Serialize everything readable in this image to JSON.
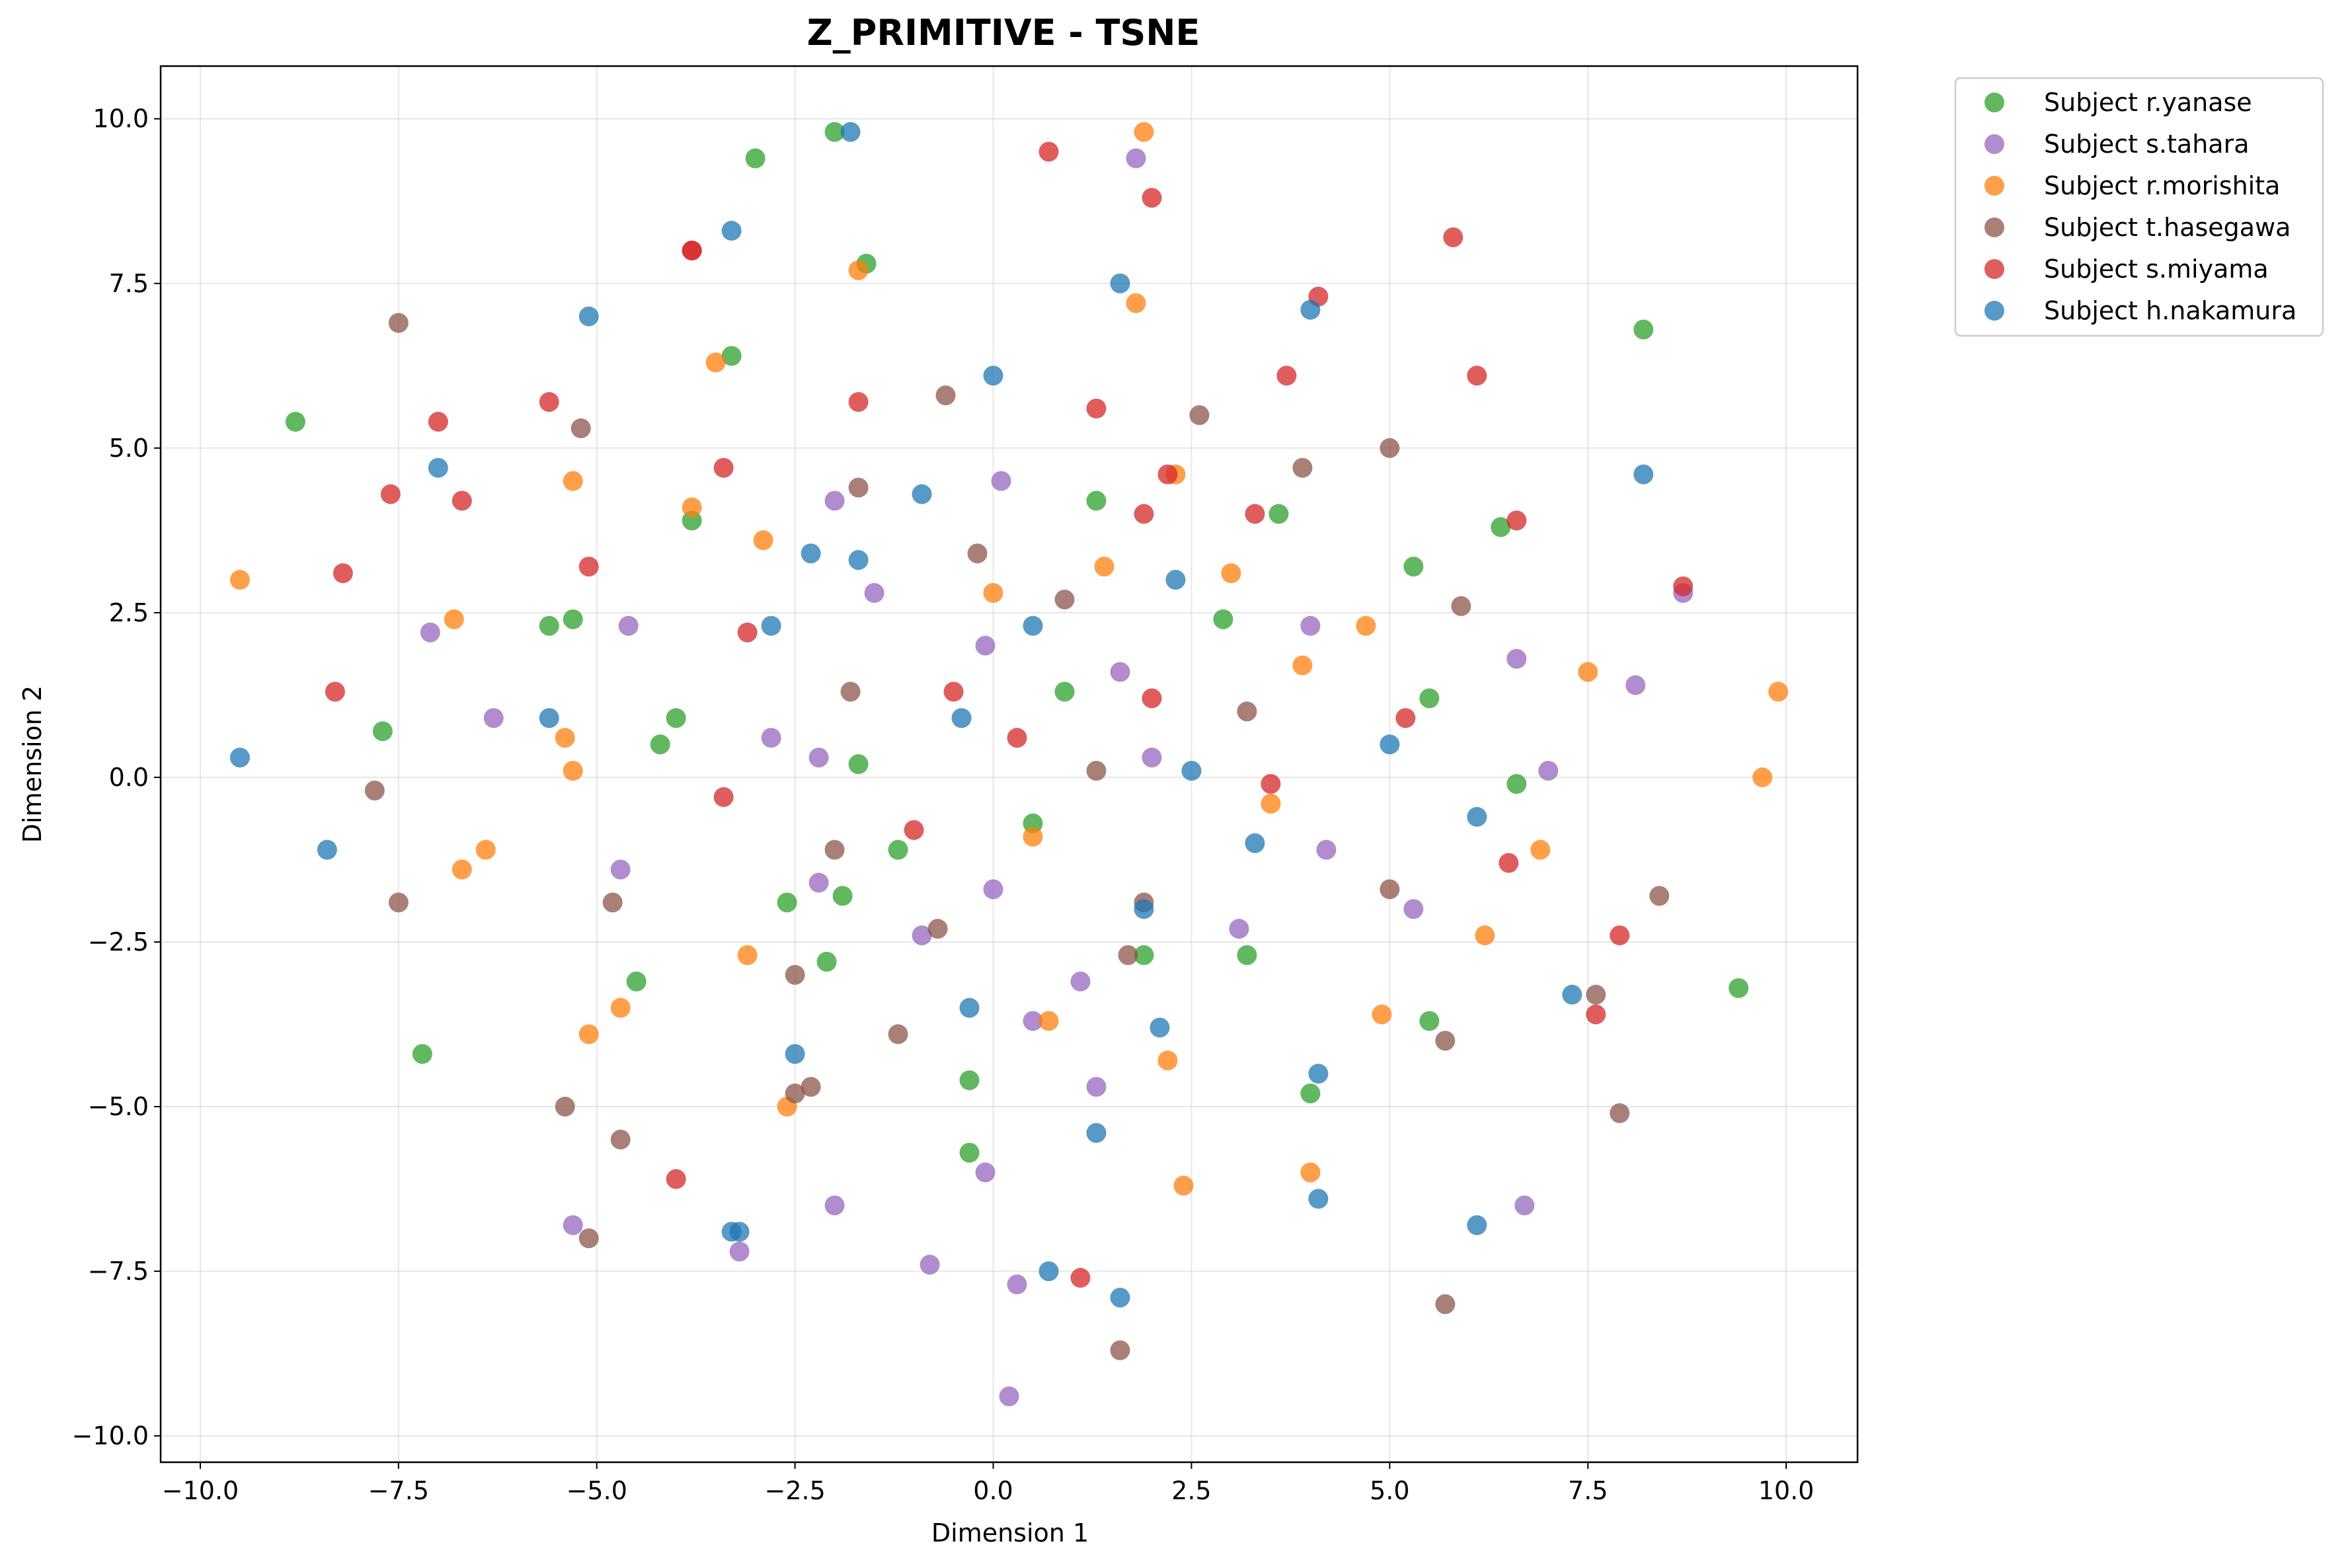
{
  "chart_data": {
    "type": "scatter",
    "title": "Z_PRIMITIVE - TSNE",
    "xlabel": "Dimension 1",
    "ylabel": "Dimension 2",
    "xlim": [
      -10.5,
      10.9
    ],
    "ylim": [
      -10.4,
      10.8
    ],
    "xticks": [
      -10.0,
      -7.5,
      -5.0,
      -2.5,
      0.0,
      2.5,
      5.0,
      7.5,
      10.0
    ],
    "yticks": [
      -10.0,
      -7.5,
      -5.0,
      -2.5,
      0.0,
      2.5,
      5.0,
      7.5,
      10.0
    ],
    "xtick_labels": [
      "−10.0",
      "−7.5",
      "−5.0",
      "−2.5",
      "0.0",
      "2.5",
      "5.0",
      "7.5",
      "10.0"
    ],
    "ytick_labels": [
      "−10.0",
      "−7.5",
      "−5.0",
      "−2.5",
      "0.0",
      "2.5",
      "5.0",
      "7.5",
      "10.0"
    ],
    "grid": true,
    "legend_position": "outside-top-right",
    "series": [
      {
        "name": "Subject r.yanase",
        "color": "#2ca02c",
        "points": [
          [
            -8.8,
            5.4
          ],
          [
            -3.0,
            9.4
          ],
          [
            -2.0,
            9.8
          ],
          [
            -1.6,
            7.8
          ],
          [
            -3.3,
            6.4
          ],
          [
            -3.8,
            3.9
          ],
          [
            -5.6,
            2.3
          ],
          [
            -5.3,
            2.4
          ],
          [
            -7.7,
            0.7
          ],
          [
            -4.0,
            0.9
          ],
          [
            -4.2,
            0.5
          ],
          [
            -1.7,
            0.2
          ],
          [
            -1.2,
            -1.1
          ],
          [
            -2.6,
            -1.9
          ],
          [
            -1.9,
            -1.8
          ],
          [
            -2.1,
            -2.8
          ],
          [
            -4.5,
            -3.1
          ],
          [
            -7.2,
            -4.2
          ],
          [
            -0.3,
            -4.6
          ],
          [
            -0.3,
            -5.7
          ],
          [
            0.5,
            -0.7
          ],
          [
            0.9,
            1.3
          ],
          [
            1.3,
            4.2
          ],
          [
            3.6,
            4.0
          ],
          [
            2.9,
            2.4
          ],
          [
            1.9,
            -2.7
          ],
          [
            3.2,
            -2.7
          ],
          [
            4.0,
            -4.8
          ],
          [
            5.3,
            3.2
          ],
          [
            5.5,
            1.2
          ],
          [
            6.4,
            3.8
          ],
          [
            6.6,
            -0.1
          ],
          [
            5.5,
            -3.7
          ],
          [
            8.2,
            6.8
          ],
          [
            9.4,
            -3.2
          ]
        ]
      },
      {
        "name": "Subject s.tahara",
        "color": "#9467bd",
        "points": [
          [
            1.8,
            9.4
          ],
          [
            -2.0,
            4.2
          ],
          [
            0.1,
            4.5
          ],
          [
            -1.5,
            2.8
          ],
          [
            -0.1,
            2.0
          ],
          [
            -4.6,
            2.3
          ],
          [
            -7.1,
            2.2
          ],
          [
            -6.3,
            0.9
          ],
          [
            -2.8,
            0.6
          ],
          [
            -2.2,
            0.3
          ],
          [
            -4.7,
            -1.4
          ],
          [
            -2.2,
            -1.6
          ],
          [
            -0.9,
            -2.4
          ],
          [
            0.0,
            -1.7
          ],
          [
            0.5,
            -3.7
          ],
          [
            1.1,
            -3.1
          ],
          [
            1.3,
            -4.7
          ],
          [
            1.6,
            1.6
          ],
          [
            2.0,
            0.3
          ],
          [
            3.1,
            -2.3
          ],
          [
            4.0,
            2.3
          ],
          [
            4.2,
            -1.1
          ],
          [
            5.3,
            -2.0
          ],
          [
            6.6,
            1.8
          ],
          [
            7.0,
            0.1
          ],
          [
            8.1,
            1.4
          ],
          [
            8.7,
            2.8
          ],
          [
            -5.3,
            -6.8
          ],
          [
            -3.2,
            -7.2
          ],
          [
            -2.0,
            -6.5
          ],
          [
            -0.8,
            -7.4
          ],
          [
            -0.1,
            -6.0
          ],
          [
            0.3,
            -7.7
          ],
          [
            0.2,
            -9.4
          ],
          [
            6.7,
            -6.5
          ]
        ]
      },
      {
        "name": "Subject r.morishita",
        "color": "#ff7f0e",
        "points": [
          [
            1.9,
            9.8
          ],
          [
            -1.7,
            7.7
          ],
          [
            1.8,
            7.2
          ],
          [
            -3.5,
            6.3
          ],
          [
            -5.3,
            4.5
          ],
          [
            -3.8,
            4.1
          ],
          [
            -2.9,
            3.6
          ],
          [
            -6.8,
            2.4
          ],
          [
            -9.5,
            3.0
          ],
          [
            -5.4,
            0.6
          ],
          [
            -5.3,
            0.1
          ],
          [
            -6.4,
            -1.1
          ],
          [
            -6.7,
            -1.4
          ],
          [
            -3.1,
            -2.7
          ],
          [
            -4.7,
            -3.5
          ],
          [
            -5.1,
            -3.9
          ],
          [
            -2.6,
            -5.0
          ],
          [
            0.0,
            2.8
          ],
          [
            1.4,
            3.2
          ],
          [
            2.3,
            4.6
          ],
          [
            3.0,
            3.1
          ],
          [
            3.9,
            1.7
          ],
          [
            4.7,
            2.3
          ],
          [
            0.5,
            -0.9
          ],
          [
            3.5,
            -0.4
          ],
          [
            0.7,
            -3.7
          ],
          [
            2.2,
            -4.3
          ],
          [
            2.4,
            -6.2
          ],
          [
            4.0,
            -6.0
          ],
          [
            4.9,
            -3.6
          ],
          [
            6.2,
            -2.4
          ],
          [
            6.9,
            -1.1
          ],
          [
            7.5,
            1.6
          ],
          [
            9.7,
            0.0
          ],
          [
            9.9,
            1.3
          ]
        ]
      },
      {
        "name": "Subject t.hasegawa",
        "color": "#8c564b",
        "points": [
          [
            -7.5,
            6.9
          ],
          [
            -5.2,
            5.3
          ],
          [
            -0.6,
            5.8
          ],
          [
            -1.7,
            4.4
          ],
          [
            -0.2,
            3.4
          ],
          [
            0.9,
            2.7
          ],
          [
            2.6,
            5.5
          ],
          [
            3.9,
            4.7
          ],
          [
            5.0,
            5.0
          ],
          [
            5.9,
            2.6
          ],
          [
            -1.8,
            1.3
          ],
          [
            1.3,
            0.1
          ],
          [
            3.2,
            1.0
          ],
          [
            -7.8,
            -0.2
          ],
          [
            -7.5,
            -1.9
          ],
          [
            -4.8,
            -1.9
          ],
          [
            -2.0,
            -1.1
          ],
          [
            -0.7,
            -2.3
          ],
          [
            1.9,
            -1.9
          ],
          [
            1.7,
            -2.7
          ],
          [
            -2.5,
            -3.0
          ],
          [
            -1.2,
            -3.9
          ],
          [
            -2.5,
            -4.8
          ],
          [
            -2.3,
            -4.7
          ],
          [
            -5.4,
            -5.0
          ],
          [
            -4.7,
            -5.5
          ],
          [
            -5.1,
            -7.0
          ],
          [
            5.0,
            -1.7
          ],
          [
            5.7,
            -4.0
          ],
          [
            7.6,
            -3.3
          ],
          [
            8.4,
            -1.8
          ],
          [
            7.9,
            -5.1
          ],
          [
            5.7,
            -8.0
          ],
          [
            1.6,
            -8.7
          ]
        ]
      },
      {
        "name": "Subject s.miyama",
        "color": "#d62728",
        "points": [
          [
            0.7,
            9.5
          ],
          [
            2.0,
            8.8
          ],
          [
            -3.8,
            8.0
          ],
          [
            -3.8,
            8.0
          ],
          [
            4.1,
            7.3
          ],
          [
            5.8,
            8.2
          ],
          [
            -1.7,
            5.7
          ],
          [
            -5.6,
            5.7
          ],
          [
            -7.0,
            5.4
          ],
          [
            1.3,
            5.6
          ],
          [
            3.7,
            6.1
          ],
          [
            6.1,
            6.1
          ],
          [
            -3.4,
            4.7
          ],
          [
            -7.6,
            4.3
          ],
          [
            -6.7,
            4.2
          ],
          [
            -8.2,
            3.1
          ],
          [
            -5.1,
            3.2
          ],
          [
            -3.1,
            2.2
          ],
          [
            1.9,
            4.0
          ],
          [
            2.2,
            4.6
          ],
          [
            3.3,
            4.0
          ],
          [
            6.6,
            3.9
          ],
          [
            8.7,
            2.9
          ],
          [
            -8.3,
            1.3
          ],
          [
            -0.5,
            1.3
          ],
          [
            0.3,
            0.6
          ],
          [
            2.0,
            1.2
          ],
          [
            5.2,
            0.9
          ],
          [
            -3.4,
            -0.3
          ],
          [
            -1.0,
            -0.8
          ],
          [
            3.5,
            -0.1
          ],
          [
            6.5,
            -1.3
          ],
          [
            7.6,
            -3.6
          ],
          [
            7.9,
            -2.4
          ],
          [
            -4.0,
            -6.1
          ],
          [
            1.1,
            -7.6
          ]
        ]
      },
      {
        "name": "Subject h.nakamura",
        "color": "#1f77b4",
        "points": [
          [
            -1.8,
            9.8
          ],
          [
            -3.3,
            8.3
          ],
          [
            1.6,
            7.5
          ],
          [
            -5.1,
            7.0
          ],
          [
            0.0,
            6.1
          ],
          [
            4.0,
            7.1
          ],
          [
            -7.0,
            4.7
          ],
          [
            8.2,
            4.6
          ],
          [
            -0.9,
            4.3
          ],
          [
            -2.3,
            3.4
          ],
          [
            -1.7,
            3.3
          ],
          [
            2.3,
            3.0
          ],
          [
            -2.8,
            2.3
          ],
          [
            0.5,
            2.3
          ],
          [
            -5.6,
            0.9
          ],
          [
            -0.4,
            0.9
          ],
          [
            -9.5,
            0.3
          ],
          [
            2.5,
            0.1
          ],
          [
            5.0,
            0.5
          ],
          [
            6.1,
            -0.6
          ],
          [
            3.3,
            -1.0
          ],
          [
            -8.4,
            -1.1
          ],
          [
            1.9,
            -2.0
          ],
          [
            -0.3,
            -3.5
          ],
          [
            2.1,
            -3.8
          ],
          [
            -2.5,
            -4.2
          ],
          [
            1.3,
            -5.4
          ],
          [
            4.1,
            -4.5
          ],
          [
            -3.3,
            -6.9
          ],
          [
            -3.2,
            -6.9
          ],
          [
            0.7,
            -7.5
          ],
          [
            1.6,
            -7.9
          ],
          [
            4.1,
            -6.4
          ],
          [
            6.1,
            -6.8
          ],
          [
            7.3,
            -3.3
          ]
        ]
      }
    ]
  }
}
